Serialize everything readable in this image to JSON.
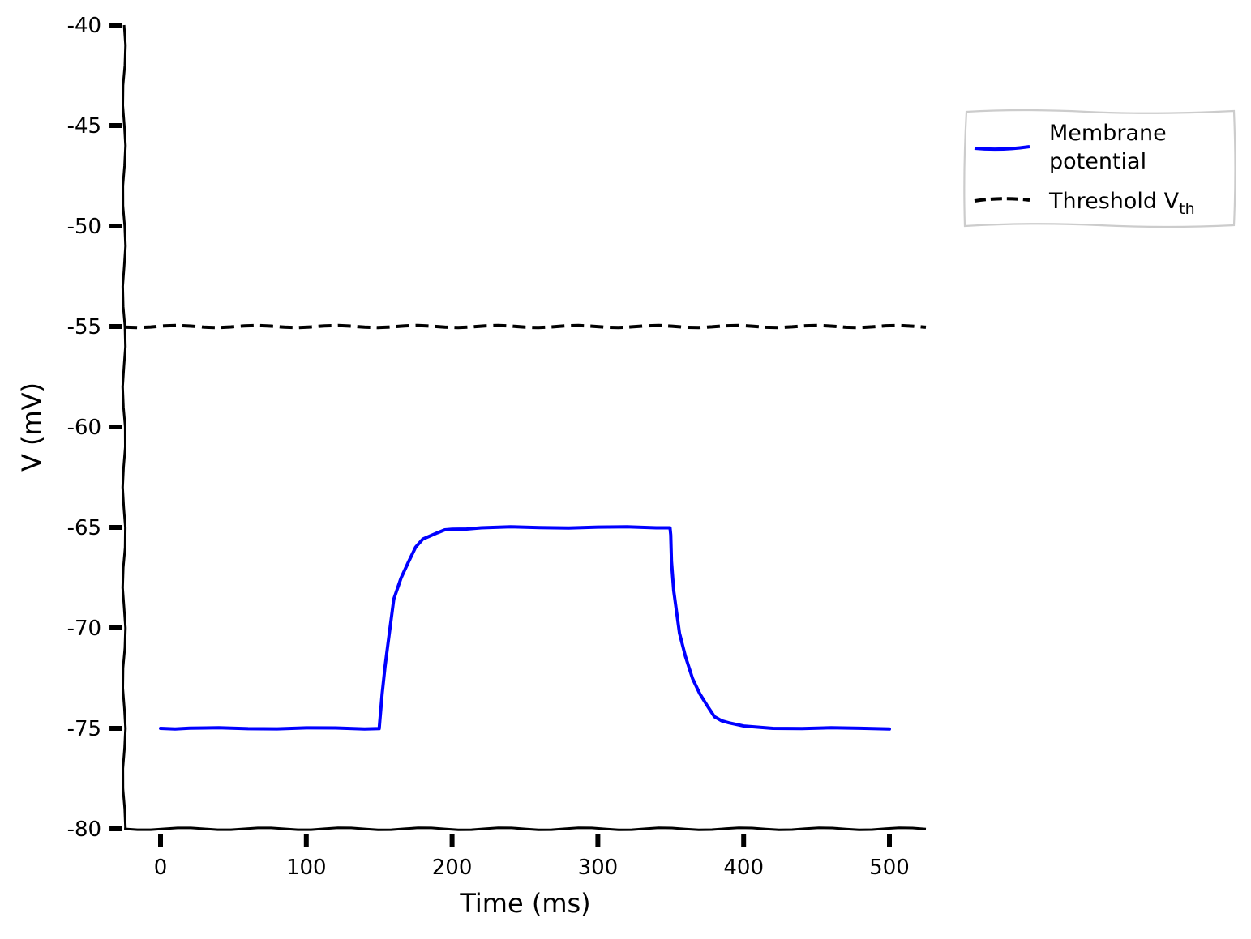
{
  "chart_data": {
    "type": "line",
    "xlabel": "Time (ms)",
    "ylabel": "V (mV)",
    "xlim": [
      -25,
      525
    ],
    "ylim": [
      -80,
      -40
    ],
    "x_ticks": [
      0,
      100,
      200,
      300,
      400,
      500
    ],
    "y_ticks": [
      -80,
      -75,
      -70,
      -65,
      -60,
      -55,
      -50,
      -45,
      -40
    ],
    "x_tick_labels": [
      "0",
      "100",
      "200",
      "300",
      "400",
      "500"
    ],
    "y_tick_labels": [
      "-80",
      "-75",
      "-70",
      "-65",
      "-60",
      "-55",
      "-50",
      "-45",
      "-40"
    ],
    "grid": false,
    "legend_position": "upper right, outside plot",
    "series": [
      {
        "name": "Membrane potential",
        "legend_lines": [
          "Membrane",
          "potential"
        ],
        "color": "#0000ff",
        "style": "solid",
        "x": [
          0,
          10,
          20,
          40,
          60,
          80,
          100,
          120,
          140,
          150,
          150.5,
          152,
          154,
          156,
          160,
          165,
          170,
          175,
          180,
          185,
          190,
          195,
          200,
          210,
          220,
          240,
          260,
          280,
          300,
          320,
          340,
          349.5,
          350,
          350.5,
          352,
          354,
          356,
          360,
          365,
          370,
          375,
          380,
          385,
          390,
          400,
          420,
          440,
          460,
          480,
          500
        ],
        "y": [
          -75.0,
          -75.0,
          -75.0,
          -75.0,
          -75.0,
          -75.0,
          -75.0,
          -75.0,
          -75.0,
          -75.0,
          -74.6,
          -73.3,
          -71.9,
          -70.8,
          -68.6,
          -67.5,
          -66.7,
          -66.0,
          -65.6,
          -65.4,
          -65.25,
          -65.15,
          -65.1,
          -65.05,
          -65.02,
          -65.0,
          -65.0,
          -65.0,
          -65.0,
          -65.0,
          -65.0,
          -65.0,
          -65.4,
          -66.7,
          -68.1,
          -69.2,
          -70.3,
          -71.4,
          -72.5,
          -73.3,
          -73.9,
          -74.4,
          -74.6,
          -74.75,
          -74.9,
          -74.97,
          -75.0,
          -75.0,
          -75.0,
          -75.0
        ]
      },
      {
        "name": "Threshold V_th",
        "legend_main": "Threshold V",
        "legend_subscript": "th",
        "color": "#000000",
        "style": "dashed",
        "x": [
          -25,
          525
        ],
        "y": [
          -55,
          -55
        ]
      }
    ]
  }
}
